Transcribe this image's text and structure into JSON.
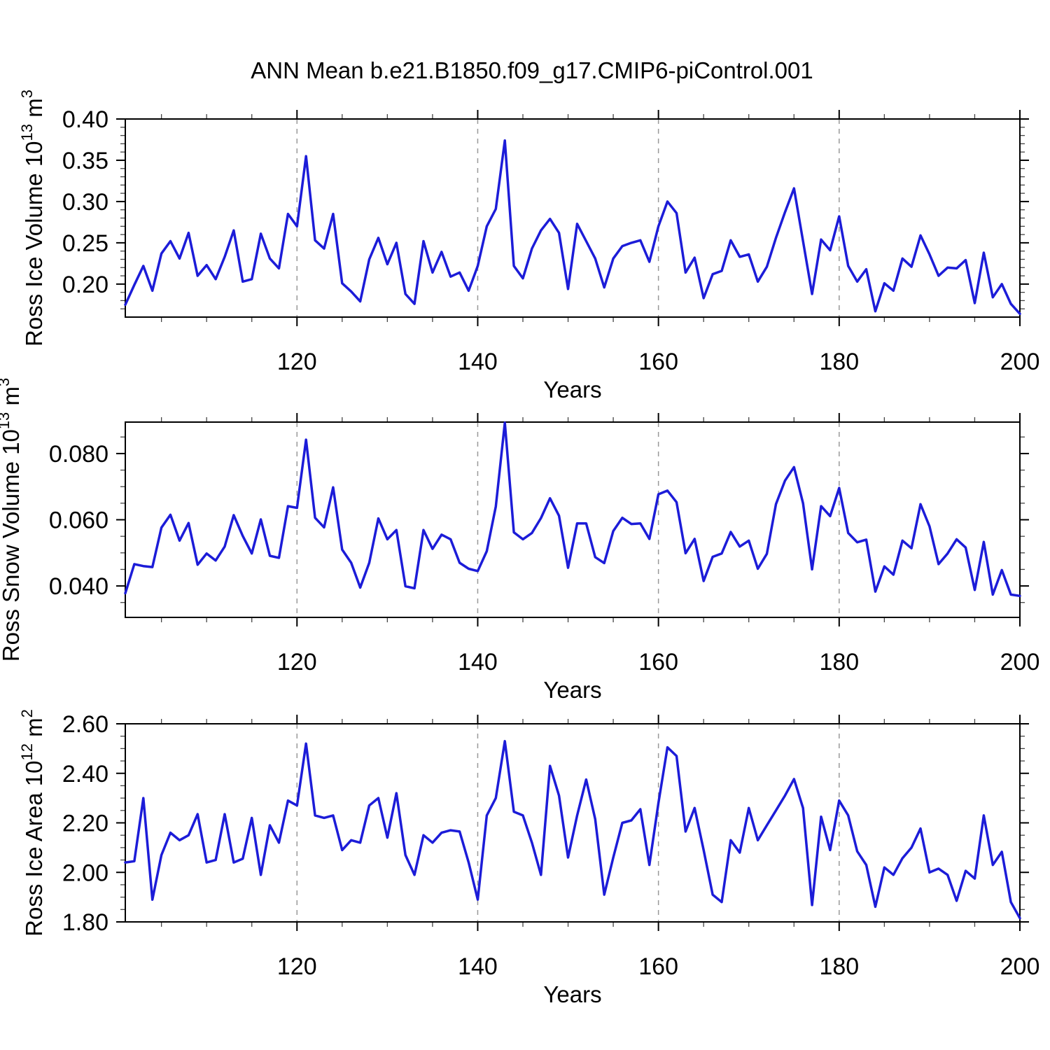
{
  "title": "ANN Mean b.e21.B1850.f09_g17.CMIP6-piControl.001",
  "xlabel": "Years",
  "colors": {
    "line": "#1c1cd8",
    "grid": "#999999",
    "frame": "#000000",
    "minor_tick": "#444444",
    "text": "#000000",
    "background": "#ffffff"
  },
  "x_axis": {
    "start": 101,
    "end": 200,
    "major_ticks": [
      120,
      140,
      160,
      180,
      200
    ],
    "major_tick_labels": [
      "120",
      "140",
      "160",
      "180",
      "200"
    ],
    "minor_step": 5,
    "gridline_years": [
      120,
      140,
      160,
      180
    ]
  },
  "chart_data": [
    {
      "type": "line",
      "title": "ANN Mean b.e21.B1850.f09_g17.CMIP6-piControl.001",
      "ylabel": "Ross Ice Volume 10^13 m^3",
      "ylabel_parts": [
        "Ross Ice Volume 10",
        "13",
        " m",
        "3"
      ],
      "xlabel": "Years",
      "ylim": [
        0.16,
        0.4
      ],
      "yticks": [
        0.2,
        0.25,
        0.3,
        0.35,
        0.4
      ],
      "ytick_labels": [
        "0.20",
        "0.25",
        "0.30",
        "0.35",
        "0.40"
      ],
      "y_minor_step": 0.01,
      "xlim": [
        101,
        200
      ],
      "grid": "x-dashed",
      "legend": "none",
      "x_years_start": 101,
      "values": [
        0.175,
        0.199,
        0.222,
        0.192,
        0.237,
        0.252,
        0.231,
        0.262,
        0.21,
        0.223,
        0.206,
        0.233,
        0.265,
        0.203,
        0.206,
        0.261,
        0.231,
        0.219,
        0.285,
        0.27,
        0.355,
        0.253,
        0.243,
        0.285,
        0.201,
        0.191,
        0.179,
        0.23,
        0.256,
        0.224,
        0.25,
        0.188,
        0.176,
        0.252,
        0.214,
        0.239,
        0.209,
        0.214,
        0.192,
        0.222,
        0.27,
        0.291,
        0.374,
        0.222,
        0.207,
        0.243,
        0.265,
        0.279,
        0.262,
        0.194,
        0.273,
        0.252,
        0.231,
        0.196,
        0.231,
        0.246,
        0.25,
        0.253,
        0.227,
        0.27,
        0.3,
        0.286,
        0.214,
        0.232,
        0.183,
        0.212,
        0.216,
        0.253,
        0.233,
        0.236,
        0.203,
        0.221,
        0.256,
        0.287,
        0.316,
        0.252,
        0.188,
        0.254,
        0.241,
        0.282,
        0.222,
        0.203,
        0.218,
        0.167,
        0.201,
        0.192,
        0.231,
        0.221,
        0.259,
        0.236,
        0.21,
        0.22,
        0.219,
        0.229,
        0.177,
        0.238,
        0.184,
        0.2,
        0.176,
        0.164
      ]
    },
    {
      "type": "line",
      "title": "",
      "ylabel": "Ross Snow Volume 10^13 m^3",
      "ylabel_parts": [
        "Ross Snow Volume 10",
        "13",
        " m",
        "3"
      ],
      "xlabel": "Years",
      "ylim": [
        0.0305,
        0.0895
      ],
      "yticks": [
        0.04,
        0.06,
        0.08
      ],
      "ytick_labels": [
        "0.040",
        "0.060",
        "0.080"
      ],
      "y_minor_step": 0.005,
      "xlim": [
        101,
        200
      ],
      "grid": "x-dashed",
      "legend": "none",
      "x_years_start": 101,
      "values": [
        0.0378,
        0.0466,
        0.046,
        0.0457,
        0.0576,
        0.0615,
        0.0537,
        0.059,
        0.0464,
        0.0498,
        0.0477,
        0.0519,
        0.0614,
        0.0551,
        0.0498,
        0.0601,
        0.0491,
        0.0485,
        0.0641,
        0.0636,
        0.0842,
        0.0606,
        0.0577,
        0.0698,
        0.051,
        0.047,
        0.0395,
        0.047,
        0.0604,
        0.0541,
        0.0569,
        0.0399,
        0.0393,
        0.0569,
        0.0512,
        0.0555,
        0.0541,
        0.047,
        0.0452,
        0.0445,
        0.0505,
        0.064,
        0.0893,
        0.0562,
        0.0541,
        0.056,
        0.0605,
        0.0665,
        0.0612,
        0.0455,
        0.0589,
        0.0589,
        0.0487,
        0.0469,
        0.0566,
        0.0606,
        0.0587,
        0.0589,
        0.0542,
        0.0677,
        0.0688,
        0.0653,
        0.0499,
        0.0542,
        0.0415,
        0.0488,
        0.0498,
        0.0563,
        0.0519,
        0.0537,
        0.0452,
        0.0497,
        0.0647,
        0.0718,
        0.0759,
        0.065,
        0.045,
        0.0641,
        0.0611,
        0.0696,
        0.056,
        0.0532,
        0.054,
        0.0383,
        0.0459,
        0.0434,
        0.0537,
        0.0514,
        0.0647,
        0.058,
        0.0466,
        0.0498,
        0.0541,
        0.0516,
        0.0388,
        0.0533,
        0.0374,
        0.0448,
        0.0374,
        0.037
      ]
    },
    {
      "type": "line",
      "title": "",
      "ylabel": "Ross Ice Area 10^12 m^2",
      "ylabel_parts": [
        "Ross Ice Area 10",
        "12",
        " m",
        "2"
      ],
      "xlabel": "Years",
      "ylim": [
        1.8,
        2.6
      ],
      "yticks": [
        1.8,
        2.0,
        2.2,
        2.4,
        2.6
      ],
      "ytick_labels": [
        "1.80",
        "2.00",
        "2.20",
        "2.40",
        "2.60"
      ],
      "y_minor_step": 0.05,
      "xlim": [
        101,
        200
      ],
      "grid": "x-dashed",
      "legend": "none",
      "x_years_start": 101,
      "values": [
        2.04,
        2.045,
        2.3,
        1.89,
        2.07,
        2.16,
        2.13,
        2.15,
        2.235,
        2.04,
        2.05,
        2.235,
        2.04,
        2.055,
        2.22,
        1.99,
        2.19,
        2.12,
        2.29,
        2.27,
        2.52,
        2.23,
        2.22,
        2.23,
        2.09,
        2.13,
        2.12,
        2.27,
        2.3,
        2.14,
        2.32,
        2.07,
        1.99,
        2.15,
        2.12,
        2.16,
        2.17,
        2.165,
        2.04,
        1.89,
        2.23,
        2.3,
        2.53,
        2.245,
        2.23,
        2.12,
        1.99,
        2.43,
        2.31,
        2.06,
        2.23,
        2.375,
        2.215,
        1.91,
        2.06,
        2.2,
        2.21,
        2.255,
        2.03,
        2.28,
        2.505,
        2.47,
        2.165,
        2.26,
        2.09,
        1.91,
        1.88,
        2.13,
        2.08,
        2.26,
        2.13,
        2.19,
        2.25,
        2.31,
        2.377,
        2.26,
        1.868,
        2.225,
        2.09,
        2.29,
        2.23,
        2.085,
        2.03,
        1.861,
        2.02,
        1.99,
        2.057,
        2.1,
        2.177,
        2.0,
        2.015,
        1.99,
        1.885,
        2.006,
        1.975,
        2.23,
        2.03,
        2.083,
        1.88,
        1.815
      ]
    }
  ]
}
